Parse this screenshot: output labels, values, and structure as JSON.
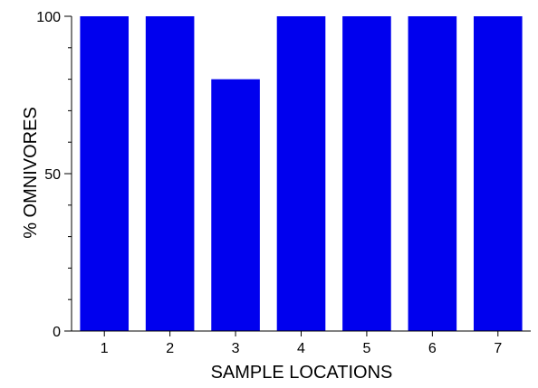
{
  "colors": {
    "bar": "#0000ee",
    "axis": "#000000",
    "background": "#ffffff"
  },
  "chart_data": {
    "type": "bar",
    "categories": [
      "1",
      "2",
      "3",
      "4",
      "5",
      "6",
      "7"
    ],
    "values": [
      100,
      100,
      80,
      100,
      100,
      100,
      100
    ],
    "title": "",
    "xlabel": "SAMPLE LOCATIONS",
    "ylabel": "% OMNIVORES",
    "ylim": [
      0,
      100
    ],
    "y_major_ticks": [
      0,
      50,
      100
    ],
    "y_minor_step": 10,
    "grid": false,
    "legend": "none"
  }
}
